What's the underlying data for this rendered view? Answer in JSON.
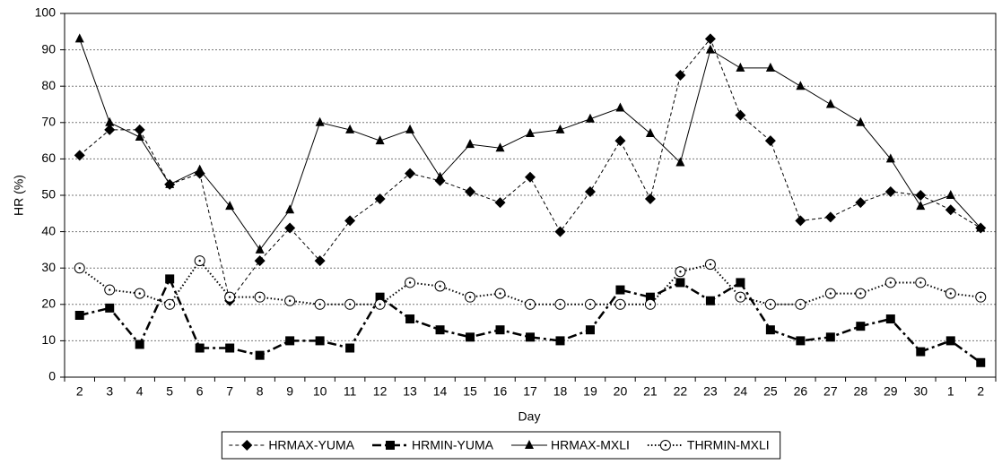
{
  "chart_data": {
    "type": "line",
    "x_label": "Day",
    "y_label": "HR (%)",
    "categories": [
      "2",
      "3",
      "4",
      "5",
      "6",
      "7",
      "8",
      "9",
      "10",
      "11",
      "12",
      "13",
      "14",
      "15",
      "16",
      "17",
      "18",
      "19",
      "20",
      "21",
      "22",
      "23",
      "24",
      "25",
      "26",
      "27",
      "28",
      "29",
      "30",
      "1",
      "2"
    ],
    "series": [
      {
        "name": "HRMAX-YUMA",
        "color": "#000000",
        "marker": "diamond",
        "dash": "4 3",
        "width": 1,
        "values": [
          61,
          68,
          68,
          53,
          56,
          21,
          32,
          41,
          32,
          43,
          49,
          56,
          54,
          51,
          48,
          55,
          40,
          51,
          65,
          49,
          83,
          93,
          72,
          65,
          43,
          44,
          48,
          51,
          50,
          46,
          41
        ]
      },
      {
        "name": "HRMIN-YUMA",
        "color": "#000000",
        "marker": "square",
        "dash": "10 4 3 4",
        "width": 2.5,
        "values": [
          17,
          19,
          9,
          27,
          8,
          8,
          6,
          10,
          10,
          8,
          22,
          16,
          13,
          11,
          13,
          11,
          10,
          13,
          24,
          22,
          26,
          21,
          26,
          13,
          10,
          11,
          14,
          16,
          7,
          10,
          4
        ]
      },
      {
        "name": "HRMAX-MXLI",
        "color": "#000000",
        "marker": "triangle",
        "dash": "",
        "width": 1,
        "values": [
          93,
          70,
          66,
          53,
          57,
          47,
          35,
          46,
          70,
          68,
          65,
          68,
          55,
          64,
          63,
          67,
          68,
          71,
          74,
          67,
          59,
          90,
          85,
          85,
          80,
          75,
          70,
          60,
          47,
          50,
          41
        ]
      },
      {
        "name": "THRMIN-MXLI",
        "color": "#000000",
        "marker": "circle",
        "dash": "1.5 2.5",
        "width": 2,
        "values": [
          30,
          24,
          23,
          20,
          32,
          22,
          22,
          21,
          20,
          20,
          20,
          26,
          25,
          22,
          23,
          20,
          20,
          20,
          20,
          20,
          29,
          31,
          22,
          20,
          20,
          23,
          23,
          26,
          26,
          23,
          22
        ]
      }
    ],
    "ylim": [
      0,
      100
    ],
    "yticks": [
      0,
      10,
      20,
      30,
      40,
      50,
      60,
      70,
      80,
      90,
      100
    ],
    "grid": true,
    "legend": "bottom"
  }
}
